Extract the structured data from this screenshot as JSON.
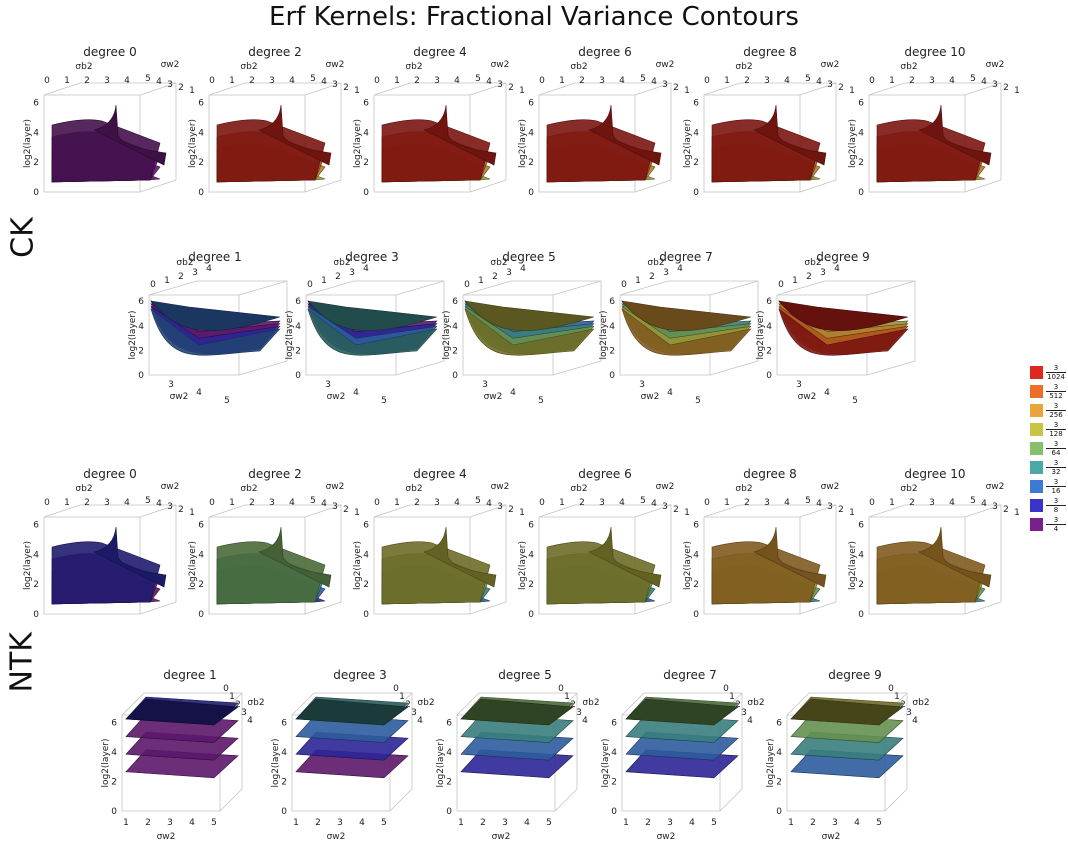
{
  "title": "Erf Kernels: Fractional Variance Contours",
  "sections": [
    {
      "label": "CK"
    },
    {
      "label": "NTK"
    }
  ],
  "axis_text": {
    "z_label": "log2(layer)",
    "z_ticks": [
      "0",
      "2",
      "4",
      "6"
    ],
    "sb_label": "σb2",
    "sw_label": "σw2",
    "sb_ticks": [
      "0",
      "1",
      "2",
      "3",
      "4",
      "5"
    ],
    "sw_ticks_desc": [
      "5",
      "4",
      "3",
      "2",
      "1"
    ],
    "sw_ticks_asc": [
      "1",
      "2",
      "3",
      "4",
      "5"
    ]
  },
  "legend": {
    "items": [
      {
        "num": "3",
        "den": "1024",
        "color": "#e0271f"
      },
      {
        "num": "3",
        "den": "512",
        "color": "#ec6f27"
      },
      {
        "num": "3",
        "den": "256",
        "color": "#e9a53a"
      },
      {
        "num": "3",
        "den": "128",
        "color": "#c8c446"
      },
      {
        "num": "3",
        "den": "64",
        "color": "#86c06b"
      },
      {
        "num": "3",
        "den": "32",
        "color": "#4aa8a6"
      },
      {
        "num": "3",
        "den": "16",
        "color": "#3d7ad4"
      },
      {
        "num": "3",
        "den": "8",
        "color": "#3a33c9"
      },
      {
        "num": "3",
        "den": "4",
        "color": "#7a1f8c"
      }
    ]
  },
  "chart_data": [
    {
      "type": "surface3d",
      "section": "CK",
      "panel": "degree 0",
      "degree": 0,
      "view": "A",
      "zlim": [
        0,
        6.5
      ],
      "dominant_level": "3/4"
    },
    {
      "type": "surface3d",
      "section": "CK",
      "panel": "degree 2",
      "degree": 2,
      "view": "A",
      "zlim": [
        0,
        6.5
      ],
      "dominant_level": "3/1024"
    },
    {
      "type": "surface3d",
      "section": "CK",
      "panel": "degree 4",
      "degree": 4,
      "view": "A",
      "zlim": [
        0,
        6.5
      ],
      "dominant_level": "3/1024"
    },
    {
      "type": "surface3d",
      "section": "CK",
      "panel": "degree 6",
      "degree": 6,
      "view": "A",
      "zlim": [
        0,
        6.5
      ],
      "dominant_level": "3/1024"
    },
    {
      "type": "surface3d",
      "section": "CK",
      "panel": "degree 8",
      "degree": 8,
      "view": "A",
      "zlim": [
        0,
        6.5
      ],
      "dominant_level": "3/1024"
    },
    {
      "type": "surface3d",
      "section": "CK",
      "panel": "degree 10",
      "degree": 10,
      "view": "A",
      "zlim": [
        0,
        6.5
      ],
      "dominant_level": "3/1024"
    },
    {
      "type": "surface3d",
      "section": "CK",
      "panel": "degree 1",
      "degree": 1,
      "view": "B",
      "zlim": [
        0,
        6.5
      ],
      "dominant_level": "3/16"
    },
    {
      "type": "surface3d",
      "section": "CK",
      "panel": "degree 3",
      "degree": 3,
      "view": "B",
      "zlim": [
        0,
        6.5
      ],
      "dominant_level": "3/32"
    },
    {
      "type": "surface3d",
      "section": "CK",
      "panel": "degree 5",
      "degree": 5,
      "view": "B",
      "zlim": [
        0,
        6.5
      ],
      "dominant_level": "3/128"
    },
    {
      "type": "surface3d",
      "section": "CK",
      "panel": "degree 7",
      "degree": 7,
      "view": "B",
      "zlim": [
        0,
        6.5
      ],
      "dominant_level": "3/256"
    },
    {
      "type": "surface3d",
      "section": "CK",
      "panel": "degree 9",
      "degree": 9,
      "view": "B",
      "zlim": [
        0,
        6.5
      ],
      "dominant_level": "3/1024"
    },
    {
      "type": "surface3d",
      "section": "NTK",
      "panel": "degree 0",
      "degree": 0,
      "view": "A",
      "zlim": [
        0,
        6.5
      ],
      "dominant_level": "3/8"
    },
    {
      "type": "surface3d",
      "section": "NTK",
      "panel": "degree 2",
      "degree": 2,
      "view": "A",
      "zlim": [
        0,
        6.5
      ],
      "dominant_level": "3/64"
    },
    {
      "type": "surface3d",
      "section": "NTK",
      "panel": "degree 4",
      "degree": 4,
      "view": "A",
      "zlim": [
        0,
        6.5
      ],
      "dominant_level": "3/128"
    },
    {
      "type": "surface3d",
      "section": "NTK",
      "panel": "degree 6",
      "degree": 6,
      "view": "A",
      "zlim": [
        0,
        6.5
      ],
      "dominant_level": "3/128"
    },
    {
      "type": "surface3d",
      "section": "NTK",
      "panel": "degree 8",
      "degree": 8,
      "view": "A",
      "zlim": [
        0,
        6.5
      ],
      "dominant_level": "3/256"
    },
    {
      "type": "surface3d",
      "section": "NTK",
      "panel": "degree 10",
      "degree": 10,
      "view": "A",
      "zlim": [
        0,
        6.5
      ],
      "dominant_level": "3/256"
    },
    {
      "type": "surface3d",
      "section": "NTK",
      "panel": "degree 1",
      "degree": 1,
      "view": "C",
      "zlim": [
        0,
        6.5
      ],
      "dominant_level": "3/8"
    },
    {
      "type": "surface3d",
      "section": "NTK",
      "panel": "degree 3",
      "degree": 3,
      "view": "C",
      "zlim": [
        0,
        6.5
      ],
      "dominant_level": "3/32"
    },
    {
      "type": "surface3d",
      "section": "NTK",
      "panel": "degree 5",
      "degree": 5,
      "view": "C",
      "zlim": [
        0,
        6.5
      ],
      "dominant_level": "3/64"
    },
    {
      "type": "surface3d",
      "section": "NTK",
      "panel": "degree 7",
      "degree": 7,
      "view": "C",
      "zlim": [
        0,
        6.5
      ],
      "dominant_level": "3/64"
    },
    {
      "type": "surface3d",
      "section": "NTK",
      "panel": "degree 9",
      "degree": 9,
      "view": "C",
      "zlim": [
        0,
        6.5
      ],
      "dominant_level": "3/128"
    }
  ]
}
